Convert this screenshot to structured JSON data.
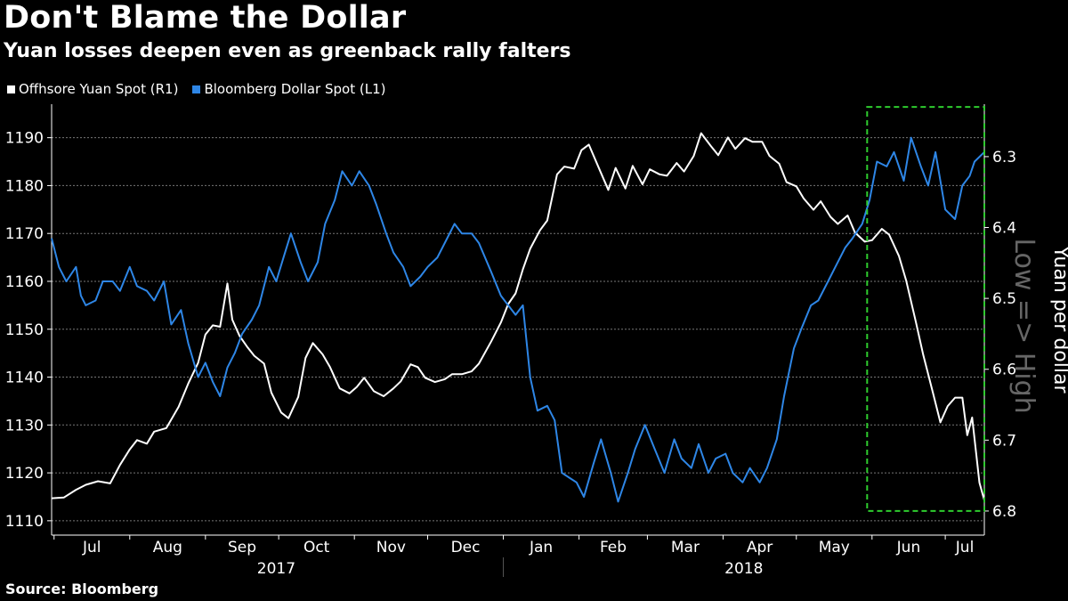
{
  "title": "Don't Blame the Dollar",
  "subtitle": "Yuan losses deepen even as greenback rally falters",
  "legend": [
    {
      "label": "Offhsore Yuan Spot (R1)",
      "color": "#ffffff"
    },
    {
      "label": "Bloomberg Dollar Spot  (L1)",
      "color": "#2e86e6"
    }
  ],
  "source": "Source: Bloomberg",
  "colors": {
    "yuan": "#ffffff",
    "dollar": "#2e86e6",
    "highlight": "#2ecc2e",
    "grid": "#777777"
  },
  "chart_data": {
    "type": "line",
    "x_domain": [
      "2017-06-30",
      "2018-07-17"
    ],
    "months": [
      {
        "label": "Jul",
        "date": "2017-07-01"
      },
      {
        "label": "Aug",
        "date": "2017-08-01"
      },
      {
        "label": "Sep",
        "date": "2017-09-01"
      },
      {
        "label": "Oct",
        "date": "2017-10-01"
      },
      {
        "label": "Nov",
        "date": "2017-11-01"
      },
      {
        "label": "Dec",
        "date": "2017-12-01"
      },
      {
        "label": "Jan",
        "date": "2018-01-01"
      },
      {
        "label": "Feb",
        "date": "2018-02-01"
      },
      {
        "label": "Mar",
        "date": "2018-03-01"
      },
      {
        "label": "Apr",
        "date": "2018-04-01"
      },
      {
        "label": "May",
        "date": "2018-05-01"
      },
      {
        "label": "Jun",
        "date": "2018-06-01"
      },
      {
        "label": "Jul",
        "date": "2018-07-01"
      }
    ],
    "years": [
      {
        "label": "2017",
        "start": "2017-06-30",
        "end": "2017-12-31"
      },
      {
        "label": "2018",
        "start": "2018-01-01",
        "end": "2018-07-17"
      }
    ],
    "left_axis": {
      "min": 1107,
      "max": 1197,
      "ticks": [
        1110,
        1120,
        1130,
        1140,
        1150,
        1160,
        1170,
        1180,
        1190
      ]
    },
    "right_axis": {
      "label": "Yuan per dollar",
      "note": "Low => High",
      "inverted": true,
      "top": 6.226,
      "bottom": 6.834,
      "ticks": [
        6.3,
        6.4,
        6.5,
        6.6,
        6.7,
        6.8
      ]
    },
    "highlight_box": {
      "start": "2018-05-30",
      "end": "2018-07-17",
      "top": 6.23,
      "bottom": 6.8
    },
    "series": [
      {
        "name": "Offhsore Yuan Spot (R1)",
        "axis": "right",
        "points": [
          [
            "2017-06-30",
            6.782
          ],
          [
            "2017-07-05",
            6.781
          ],
          [
            "2017-07-10",
            6.77
          ],
          [
            "2017-07-14",
            6.763
          ],
          [
            "2017-07-19",
            6.758
          ],
          [
            "2017-07-24",
            6.761
          ],
          [
            "2017-07-28",
            6.735
          ],
          [
            "2017-08-01",
            6.713
          ],
          [
            "2017-08-04",
            6.7
          ],
          [
            "2017-08-08",
            6.705
          ],
          [
            "2017-08-11",
            6.688
          ],
          [
            "2017-08-16",
            6.683
          ],
          [
            "2017-08-21",
            6.653
          ],
          [
            "2017-08-25",
            6.62
          ],
          [
            "2017-08-29",
            6.591
          ],
          [
            "2017-09-01",
            6.551
          ],
          [
            "2017-09-04",
            6.538
          ],
          [
            "2017-09-07",
            6.54
          ],
          [
            "2017-09-10",
            6.479
          ],
          [
            "2017-09-12",
            6.53
          ],
          [
            "2017-09-15",
            6.553
          ],
          [
            "2017-09-18",
            6.568
          ],
          [
            "2017-09-21",
            6.581
          ],
          [
            "2017-09-25",
            6.592
          ],
          [
            "2017-09-28",
            6.633
          ],
          [
            "2017-10-02",
            6.661
          ],
          [
            "2017-10-05",
            6.669
          ],
          [
            "2017-10-09",
            6.639
          ],
          [
            "2017-10-12",
            6.584
          ],
          [
            "2017-10-15",
            6.563
          ],
          [
            "2017-10-19",
            6.579
          ],
          [
            "2017-10-22",
            6.597
          ],
          [
            "2017-10-26",
            6.627
          ],
          [
            "2017-10-30",
            6.634
          ],
          [
            "2017-11-02",
            6.625
          ],
          [
            "2017-11-05",
            6.612
          ],
          [
            "2017-11-09",
            6.631
          ],
          [
            "2017-11-13",
            6.638
          ],
          [
            "2017-11-17",
            6.627
          ],
          [
            "2017-11-20",
            6.617
          ],
          [
            "2017-11-24",
            6.593
          ],
          [
            "2017-11-27",
            6.597
          ],
          [
            "2017-11-30",
            6.612
          ],
          [
            "2017-12-04",
            6.618
          ],
          [
            "2017-12-08",
            6.614
          ],
          [
            "2017-12-11",
            6.607
          ],
          [
            "2017-12-15",
            6.607
          ],
          [
            "2017-12-19",
            6.603
          ],
          [
            "2017-12-22",
            6.592
          ],
          [
            "2017-12-27",
            6.561
          ],
          [
            "2017-12-31",
            6.534
          ],
          [
            "2018-01-03",
            6.508
          ],
          [
            "2018-01-06",
            6.493
          ],
          [
            "2018-01-09",
            6.459
          ],
          [
            "2018-01-12",
            6.43
          ],
          [
            "2018-01-16",
            6.404
          ],
          [
            "2018-01-19",
            6.39
          ],
          [
            "2018-01-23",
            6.325
          ],
          [
            "2018-01-26",
            6.314
          ],
          [
            "2018-01-30",
            6.317
          ],
          [
            "2018-02-02",
            6.291
          ],
          [
            "2018-02-05",
            6.283
          ],
          [
            "2018-02-09",
            6.315
          ],
          [
            "2018-02-13",
            6.347
          ],
          [
            "2018-02-16",
            6.316
          ],
          [
            "2018-02-20",
            6.345
          ],
          [
            "2018-02-23",
            6.313
          ],
          [
            "2018-02-27",
            6.339
          ],
          [
            "2018-03-02",
            6.318
          ],
          [
            "2018-03-06",
            6.325
          ],
          [
            "2018-03-09",
            6.327
          ],
          [
            "2018-03-13",
            6.309
          ],
          [
            "2018-03-16",
            6.321
          ],
          [
            "2018-03-20",
            6.299
          ],
          [
            "2018-03-23",
            6.267
          ],
          [
            "2018-03-27",
            6.285
          ],
          [
            "2018-03-30",
            6.298
          ],
          [
            "2018-04-03",
            6.273
          ],
          [
            "2018-04-06",
            6.289
          ],
          [
            "2018-04-10",
            6.274
          ],
          [
            "2018-04-13",
            6.279
          ],
          [
            "2018-04-17",
            6.279
          ],
          [
            "2018-04-20",
            6.299
          ],
          [
            "2018-04-24",
            6.31
          ],
          [
            "2018-04-27",
            6.336
          ],
          [
            "2018-05-01",
            6.342
          ],
          [
            "2018-05-04",
            6.359
          ],
          [
            "2018-05-08",
            6.375
          ],
          [
            "2018-05-11",
            6.363
          ],
          [
            "2018-05-15",
            6.385
          ],
          [
            "2018-05-18",
            6.395
          ],
          [
            "2018-05-22",
            6.383
          ],
          [
            "2018-05-25",
            6.407
          ],
          [
            "2018-05-29",
            6.42
          ],
          [
            "2018-06-01",
            6.418
          ],
          [
            "2018-06-05",
            6.402
          ],
          [
            "2018-06-08",
            6.41
          ],
          [
            "2018-06-12",
            6.44
          ],
          [
            "2018-06-15",
            6.475
          ],
          [
            "2018-06-19",
            6.534
          ],
          [
            "2018-06-22",
            6.58
          ],
          [
            "2018-06-26",
            6.634
          ],
          [
            "2018-06-29",
            6.675
          ],
          [
            "2018-07-02",
            6.652
          ],
          [
            "2018-07-05",
            6.64
          ],
          [
            "2018-07-08",
            6.64
          ],
          [
            "2018-07-10",
            6.693
          ],
          [
            "2018-07-12",
            6.668
          ],
          [
            "2018-07-15",
            6.76
          ],
          [
            "2018-07-17",
            6.785
          ]
        ]
      },
      {
        "name": "Bloomberg Dollar Spot  (L1)",
        "axis": "left",
        "points": [
          [
            "2017-06-30",
            1169
          ],
          [
            "2017-07-03",
            1163
          ],
          [
            "2017-07-06",
            1160
          ],
          [
            "2017-07-10",
            1163
          ],
          [
            "2017-07-12",
            1157
          ],
          [
            "2017-07-14",
            1155
          ],
          [
            "2017-07-18",
            1156
          ],
          [
            "2017-07-21",
            1160
          ],
          [
            "2017-07-25",
            1160
          ],
          [
            "2017-07-28",
            1158
          ],
          [
            "2017-08-01",
            1163
          ],
          [
            "2017-08-04",
            1159
          ],
          [
            "2017-08-08",
            1158
          ],
          [
            "2017-08-11",
            1156
          ],
          [
            "2017-08-15",
            1160
          ],
          [
            "2017-08-18",
            1151
          ],
          [
            "2017-08-22",
            1154
          ],
          [
            "2017-08-25",
            1147
          ],
          [
            "2017-08-29",
            1140
          ],
          [
            "2017-09-01",
            1143
          ],
          [
            "2017-09-04",
            1139
          ],
          [
            "2017-09-07",
            1136
          ],
          [
            "2017-09-10",
            1142
          ],
          [
            "2017-09-13",
            1145
          ],
          [
            "2017-09-16",
            1149
          ],
          [
            "2017-09-20",
            1152
          ],
          [
            "2017-09-23",
            1155
          ],
          [
            "2017-09-27",
            1163
          ],
          [
            "2017-09-30",
            1160
          ],
          [
            "2017-10-03",
            1165
          ],
          [
            "2017-10-06",
            1170
          ],
          [
            "2017-10-10",
            1164
          ],
          [
            "2017-10-13",
            1160
          ],
          [
            "2017-10-17",
            1164
          ],
          [
            "2017-10-20",
            1172
          ],
          [
            "2017-10-24",
            1177
          ],
          [
            "2017-10-27",
            1183
          ],
          [
            "2017-10-31",
            1180
          ],
          [
            "2017-11-03",
            1183
          ],
          [
            "2017-11-07",
            1180
          ],
          [
            "2017-11-10",
            1176
          ],
          [
            "2017-11-14",
            1170
          ],
          [
            "2017-11-17",
            1166
          ],
          [
            "2017-11-21",
            1163
          ],
          [
            "2017-11-24",
            1159
          ],
          [
            "2017-11-28",
            1161
          ],
          [
            "2017-12-01",
            1163
          ],
          [
            "2017-12-05",
            1165
          ],
          [
            "2017-12-08",
            1168
          ],
          [
            "2017-12-12",
            1172
          ],
          [
            "2017-12-15",
            1170
          ],
          [
            "2017-12-19",
            1170
          ],
          [
            "2017-12-22",
            1168
          ],
          [
            "2017-12-27",
            1162
          ],
          [
            "2017-12-31",
            1157
          ],
          [
            "2018-01-03",
            1155
          ],
          [
            "2018-01-06",
            1153
          ],
          [
            "2018-01-09",
            1155
          ],
          [
            "2018-01-12",
            1140
          ],
          [
            "2018-01-15",
            1133
          ],
          [
            "2018-01-19",
            1134
          ],
          [
            "2018-01-22",
            1131
          ],
          [
            "2018-01-25",
            1120
          ],
          [
            "2018-01-28",
            1119
          ],
          [
            "2018-01-31",
            1118
          ],
          [
            "2018-02-03",
            1115
          ],
          [
            "2018-02-07",
            1122
          ],
          [
            "2018-02-10",
            1127
          ],
          [
            "2018-02-14",
            1120
          ],
          [
            "2018-02-17",
            1114
          ],
          [
            "2018-02-21",
            1120
          ],
          [
            "2018-02-24",
            1125
          ],
          [
            "2018-02-28",
            1130
          ],
          [
            "2018-03-04",
            1125
          ],
          [
            "2018-03-08",
            1120
          ],
          [
            "2018-03-12",
            1127
          ],
          [
            "2018-03-15",
            1123
          ],
          [
            "2018-03-19",
            1121
          ],
          [
            "2018-03-22",
            1126
          ],
          [
            "2018-03-26",
            1120
          ],
          [
            "2018-03-29",
            1123
          ],
          [
            "2018-04-02",
            1124
          ],
          [
            "2018-04-05",
            1120
          ],
          [
            "2018-04-09",
            1118
          ],
          [
            "2018-04-12",
            1121
          ],
          [
            "2018-04-16",
            1118
          ],
          [
            "2018-04-19",
            1121
          ],
          [
            "2018-04-23",
            1127
          ],
          [
            "2018-04-26",
            1136
          ],
          [
            "2018-04-30",
            1146
          ],
          [
            "2018-05-03",
            1150
          ],
          [
            "2018-05-07",
            1155
          ],
          [
            "2018-05-10",
            1156
          ],
          [
            "2018-05-14",
            1160
          ],
          [
            "2018-05-17",
            1163
          ],
          [
            "2018-05-21",
            1167
          ],
          [
            "2018-05-24",
            1169
          ],
          [
            "2018-05-28",
            1172
          ],
          [
            "2018-05-31",
            1177
          ],
          [
            "2018-06-03",
            1185
          ],
          [
            "2018-06-07",
            1184
          ],
          [
            "2018-06-10",
            1187
          ],
          [
            "2018-06-14",
            1181
          ],
          [
            "2018-06-17",
            1190
          ],
          [
            "2018-06-21",
            1184
          ],
          [
            "2018-06-24",
            1180
          ],
          [
            "2018-06-27",
            1187
          ],
          [
            "2018-07-01",
            1175
          ],
          [
            "2018-07-05",
            1173
          ],
          [
            "2018-07-08",
            1180
          ],
          [
            "2018-07-11",
            1182
          ],
          [
            "2018-07-13",
            1185
          ],
          [
            "2018-07-17",
            1187
          ]
        ]
      }
    ]
  }
}
